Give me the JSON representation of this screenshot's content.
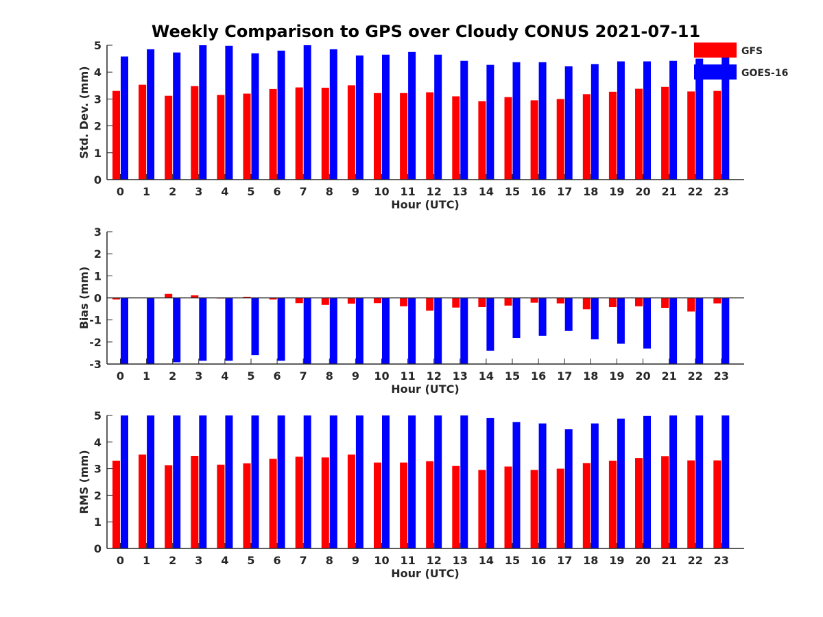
{
  "figure": {
    "title": "Weekly Comparison to GPS over Cloudy CONUS 2021-07-11",
    "colors": {
      "GFS": "#ff0000",
      "GOES-16": "#0000ff",
      "axis": "#262626"
    }
  },
  "legend": {
    "placement": "top-right",
    "entries": [
      "GFS",
      "GOES-16"
    ]
  },
  "chart_data": [
    {
      "type": "bar",
      "title": "Weekly Comparison to GPS over Cloudy CONUS 2021-07-11",
      "xlabel": "Hour (UTC)",
      "ylabel": "Std. Dev. (mm)",
      "ylim": [
        0,
        5
      ],
      "yticks": [
        0,
        1,
        2,
        3,
        4,
        5
      ],
      "grid": false,
      "categories": [
        "0",
        "1",
        "2",
        "3",
        "4",
        "5",
        "6",
        "7",
        "8",
        "9",
        "10",
        "11",
        "12",
        "13",
        "14",
        "15",
        "16",
        "17",
        "18",
        "19",
        "20",
        "21",
        "22",
        "23"
      ],
      "series": [
        {
          "name": "GFS",
          "values": [
            3.3,
            3.53,
            3.12,
            3.48,
            3.15,
            3.2,
            3.37,
            3.43,
            3.42,
            3.51,
            3.22,
            3.22,
            3.25,
            3.1,
            2.92,
            3.07,
            2.95,
            3.0,
            3.18,
            3.27,
            3.38,
            3.45,
            3.28,
            3.3
          ]
        },
        {
          "name": "GOES-16",
          "values": [
            4.58,
            4.85,
            4.73,
            5.0,
            4.98,
            4.7,
            4.8,
            5.0,
            4.85,
            4.62,
            4.65,
            4.75,
            4.65,
            4.42,
            4.27,
            4.37,
            4.37,
            4.22,
            4.3,
            4.4,
            4.4,
            4.42,
            4.5,
            4.62
          ]
        }
      ]
    },
    {
      "type": "bar",
      "xlabel": "Hour (UTC)",
      "ylabel": "Bias (mm)",
      "ylim": [
        -3,
        3
      ],
      "yticks": [
        -3,
        -2,
        -1,
        0,
        1,
        2,
        3
      ],
      "grid": false,
      "categories": [
        "0",
        "1",
        "2",
        "3",
        "4",
        "5",
        "6",
        "7",
        "8",
        "9",
        "10",
        "11",
        "12",
        "13",
        "14",
        "15",
        "16",
        "17",
        "18",
        "19",
        "20",
        "21",
        "22",
        "23"
      ],
      "series": [
        {
          "name": "GFS",
          "values": [
            -0.07,
            0.0,
            0.18,
            0.12,
            -0.03,
            0.05,
            -0.07,
            -0.24,
            -0.32,
            -0.26,
            -0.24,
            -0.38,
            -0.58,
            -0.44,
            -0.42,
            -0.35,
            -0.22,
            -0.25,
            -0.52,
            -0.42,
            -0.38,
            -0.45,
            -0.62,
            -0.25
          ]
        },
        {
          "name": "GOES-16",
          "values": [
            -3.0,
            -3.0,
            -2.92,
            -2.85,
            -2.85,
            -2.6,
            -2.85,
            -3.0,
            -3.0,
            -3.0,
            -3.0,
            -3.0,
            -3.0,
            -3.0,
            -2.4,
            -1.82,
            -1.72,
            -1.5,
            -1.88,
            -2.08,
            -2.3,
            -3.0,
            -3.0,
            -3.0
          ]
        }
      ]
    },
    {
      "type": "bar",
      "xlabel": "Hour (UTC)",
      "ylabel": "RMS (mm)",
      "ylim": [
        0,
        5
      ],
      "yticks": [
        0,
        1,
        2,
        3,
        4,
        5
      ],
      "grid": false,
      "categories": [
        "0",
        "1",
        "2",
        "3",
        "4",
        "5",
        "6",
        "7",
        "8",
        "9",
        "10",
        "11",
        "12",
        "13",
        "14",
        "15",
        "16",
        "17",
        "18",
        "19",
        "20",
        "21",
        "22",
        "23"
      ],
      "series": [
        {
          "name": "GFS",
          "values": [
            3.3,
            3.53,
            3.13,
            3.48,
            3.15,
            3.2,
            3.37,
            3.45,
            3.42,
            3.53,
            3.23,
            3.23,
            3.28,
            3.1,
            2.95,
            3.08,
            2.95,
            3.0,
            3.21,
            3.3,
            3.4,
            3.47,
            3.31,
            3.31
          ]
        },
        {
          "name": "GOES-16",
          "values": [
            5.0,
            5.0,
            5.0,
            5.0,
            5.0,
            5.0,
            5.0,
            5.0,
            5.0,
            5.0,
            5.0,
            5.0,
            5.0,
            5.0,
            4.9,
            4.75,
            4.7,
            4.48,
            4.7,
            4.88,
            4.98,
            5.0,
            5.0,
            5.0
          ]
        }
      ]
    }
  ]
}
